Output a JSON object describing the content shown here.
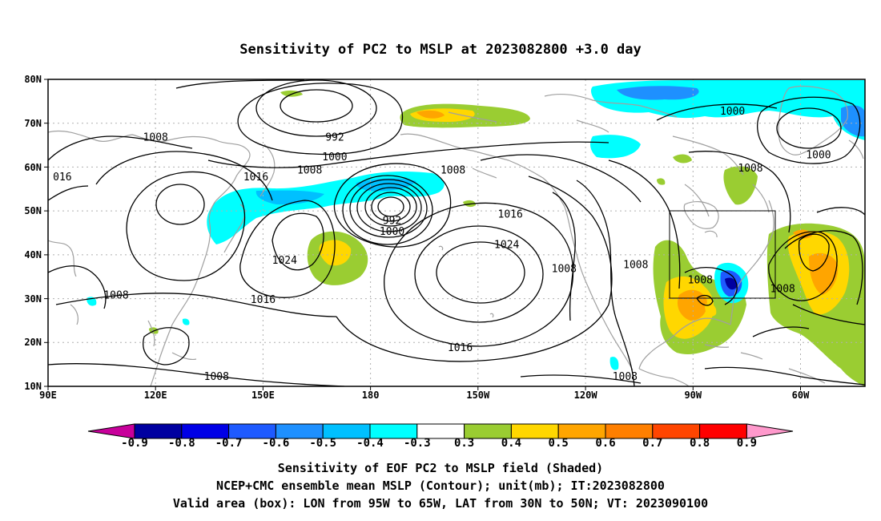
{
  "title": "Sensitivity of PC2 to MSLP at 2023082800 +3.0 day",
  "lat_labels": [
    "80N",
    "70N",
    "60N",
    "50N",
    "40N",
    "30N",
    "20N",
    "10N"
  ],
  "lon_labels": [
    "90E",
    "120E",
    "150E",
    "180",
    "150W",
    "120W",
    "90W",
    "60W"
  ],
  "contour_labels": [
    {
      "text": "1008",
      "lon": 120,
      "lat": 66
    },
    {
      "text": "992",
      "lon": 170,
      "lat": 66
    },
    {
      "text": "1000",
      "lon": 170,
      "lat": 61.5
    },
    {
      "text": "1008",
      "lon": 163,
      "lat": 58.5
    },
    {
      "text": "016",
      "lon": 94,
      "lat": 57
    },
    {
      "text": "1016",
      "lon": 148,
      "lat": 57
    },
    {
      "text": "1008",
      "lon": -157,
      "lat": 58.5
    },
    {
      "text": "992",
      "lon": 186,
      "lat": 47
    },
    {
      "text": "1000",
      "lon": 186,
      "lat": 44.5
    },
    {
      "text": "1016",
      "lon": -141,
      "lat": 48.5
    },
    {
      "text": "1024",
      "lon": -142,
      "lat": 41.5
    },
    {
      "text": "1024",
      "lon": 156,
      "lat": 38
    },
    {
      "text": "1016",
      "lon": 150,
      "lat": 29
    },
    {
      "text": "1008",
      "lon": 109,
      "lat": 30
    },
    {
      "text": "1008",
      "lon": -126,
      "lat": 36
    },
    {
      "text": "1008",
      "lon": -106,
      "lat": 37
    },
    {
      "text": "1008",
      "lon": -88,
      "lat": 33.5
    },
    {
      "text": "1008",
      "lon": -65,
      "lat": 31.5
    },
    {
      "text": "1016",
      "lon": -155,
      "lat": 18
    },
    {
      "text": "1008",
      "lon": 137,
      "lat": 11.5
    },
    {
      "text": "1008",
      "lon": -109,
      "lat": 11.5
    },
    {
      "text": "1000",
      "lon": -79,
      "lat": 72
    },
    {
      "text": "1000",
      "lon": -55,
      "lat": 62
    },
    {
      "text": "1008",
      "lon": -74,
      "lat": 59
    }
  ],
  "colorbar": {
    "labels": [
      "-0.9",
      "-0.8",
      "-0.7",
      "-0.6",
      "-0.5",
      "-0.4",
      "-0.3",
      "0.3",
      "0.4",
      "0.5",
      "0.6",
      "0.7",
      "0.8",
      "0.9"
    ],
    "colors": [
      "#c8009b",
      "#0000a0",
      "#0000e6",
      "#1e5aff",
      "#1e90ff",
      "#00c0ff",
      "#00ffff",
      "#ffffff",
      "#9acd32",
      "#ffd700",
      "#ffa500",
      "#ff7f00",
      "#ff4500",
      "#ff0000",
      "#ff99cc"
    ]
  },
  "captions": [
    "Sensitivity of EOF PC2 to MSLP field (Shaded)",
    "NCEP+CMC ensemble mean MSLP (Contour); unit(mb); IT:2023082800",
    "Valid area (box): LON from 95W to 65W, LAT from 30N to 50N; VT: 2023090100"
  ]
}
